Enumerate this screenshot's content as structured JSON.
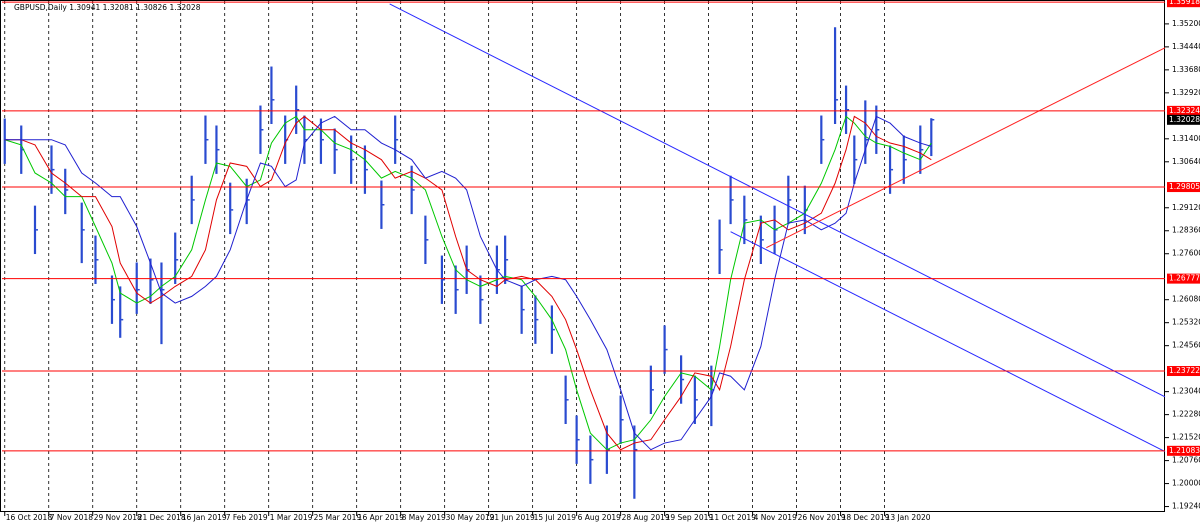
{
  "chart_data": {
    "type": "ohlc",
    "title": "GBPUSD,Daily  1.30941 1.32081 1.30826 1.32028",
    "x": [
      0,
      6,
      11,
      17,
      22,
      28,
      33,
      39,
      42,
      48,
      53,
      57,
      62,
      68,
      73,
      77,
      82,
      88,
      93,
      97,
      102,
      106,
      109,
      115,
      120,
      126,
      131,
      137,
      142,
      148,
      153,
      159,
      164,
      168,
      173,
      179,
      182,
      188,
      193,
      199,
      204,
      208,
      213,
      219,
      224,
      229,
      235,
      240,
      246,
      251,
      257,
      260,
      264,
      269,
      275,
      280,
      285,
      291,
      297,
      302,
      306,
      309,
      313,
      317,
      322,
      327,
      333,
      337
    ],
    "close": [
      1.3137,
      1.3104,
      1.2839,
      1.3038,
      1.2971,
      1.2839,
      1.274,
      1.2608,
      1.2542,
      1.2641,
      1.2674,
      1.2641,
      1.274,
      1.2938,
      1.3137,
      1.3104,
      1.2905,
      1.2938,
      1.317,
      1.3269,
      1.3137,
      1.3236,
      1.3137,
      1.3137,
      1.3104,
      1.3071,
      1.3038,
      1.2922,
      1.3137,
      1.2971,
      1.2806,
      1.2674,
      1.2641,
      1.2707,
      1.2608,
      1.2707,
      1.274,
      1.2575,
      1.2542,
      1.2509,
      1.2277,
      1.2145,
      1.2079,
      1.2112,
      1.2211,
      1.2112,
      1.231,
      1.2443,
      1.2344,
      1.2277,
      1.231,
      1.2773,
      1.2938,
      1.2872,
      1.2806,
      1.2839,
      1.2938,
      1.2905,
      1.3137,
      1.3269,
      1.3236,
      1.3071,
      1.3137,
      1.317,
      1.3038,
      1.3071,
      1.3104,
      1.3203
    ],
    "high": [
      1.3207,
      1.3184,
      1.2919,
      1.3118,
      1.3041,
      1.2929,
      1.282,
      1.2688,
      1.2652,
      1.2731,
      1.2744,
      1.2731,
      1.283,
      1.3018,
      1.3217,
      1.3184,
      1.2995,
      1.3008,
      1.325,
      1.3379,
      1.3217,
      1.3316,
      1.3217,
      1.3207,
      1.3174,
      1.3151,
      1.3118,
      1.3002,
      1.3217,
      1.3051,
      1.2886,
      1.2754,
      1.2721,
      1.2787,
      1.2688,
      1.2787,
      1.282,
      1.2655,
      1.2622,
      1.2589,
      1.2357,
      1.2225,
      1.2159,
      1.2192,
      1.2291,
      1.2192,
      1.239,
      1.2523,
      1.2424,
      1.2357,
      1.239,
      1.2873,
      1.3018,
      1.2952,
      1.2886,
      1.2919,
      1.3018,
      1.2985,
      1.3217,
      1.3509,
      1.3316,
      1.3151,
      1.3267,
      1.325,
      1.3118,
      1.3151,
      1.3184,
      1.3208
    ],
    "low": [
      1.3057,
      1.3024,
      1.2759,
      1.2958,
      1.2891,
      1.2729,
      1.266,
      1.2528,
      1.2482,
      1.2561,
      1.2594,
      1.2461,
      1.266,
      1.2858,
      1.3057,
      1.3024,
      1.2825,
      1.2858,
      1.309,
      1.3189,
      1.3057,
      1.3156,
      1.3057,
      1.3057,
      1.3024,
      1.2991,
      1.2958,
      1.2842,
      1.3057,
      1.2891,
      1.2726,
      1.2594,
      1.2561,
      1.2627,
      1.2528,
      1.2627,
      1.266,
      1.2495,
      1.2462,
      1.2429,
      1.2197,
      1.2065,
      1.1999,
      1.2032,
      1.2131,
      1.195,
      1.223,
      1.2363,
      1.2264,
      1.2197,
      1.219,
      1.2693,
      1.2858,
      1.2792,
      1.2726,
      1.2759,
      1.2858,
      1.2825,
      1.3057,
      1.3189,
      1.3156,
      1.2991,
      1.3057,
      1.309,
      1.2958,
      1.2991,
      1.3024,
      1.3083
    ],
    "moving_averages": [
      {
        "color": "#00c800",
        "values": [
          1.3137,
          1.312,
          1.3027,
          1.2994,
          1.2949,
          1.2949,
          1.285,
          1.2729,
          1.263,
          1.2597,
          1.2619,
          1.2652,
          1.2685,
          1.2773,
          1.2938,
          1.306,
          1.3049,
          1.2982,
          1.3004,
          1.3126,
          1.3192,
          1.3214,
          1.317,
          1.317,
          1.3126,
          1.3104,
          1.3071,
          1.301,
          1.3032,
          1.301,
          1.2971,
          1.2817,
          1.2707,
          1.2674,
          1.2652,
          1.2674,
          1.2685,
          1.2674,
          1.2619,
          1.2542,
          1.2443,
          1.231,
          1.2167,
          1.2112,
          1.2134,
          1.2145,
          1.2211,
          1.2288,
          1.2366,
          1.2355,
          1.231,
          1.2453,
          1.2674,
          1.2861,
          1.2872,
          1.2839,
          1.2861,
          1.2894,
          1.2993,
          1.3104,
          1.3214,
          1.3192,
          1.3148,
          1.3126,
          1.3115,
          1.3093,
          1.3071,
          1.3126
        ]
      },
      {
        "color": "#e00000",
        "values": [
          1.3137,
          1.3137,
          1.312,
          1.3027,
          1.2994,
          1.2949,
          1.2949,
          1.285,
          1.2729,
          1.263,
          1.2597,
          1.2619,
          1.2652,
          1.2685,
          1.2773,
          1.2938,
          1.306,
          1.3049,
          1.2982,
          1.3004,
          1.3126,
          1.3192,
          1.3214,
          1.317,
          1.317,
          1.3126,
          1.3104,
          1.3071,
          1.301,
          1.3032,
          1.301,
          1.2971,
          1.2817,
          1.2707,
          1.2674,
          1.2652,
          1.2674,
          1.2685,
          1.2674,
          1.2619,
          1.2542,
          1.2443,
          1.231,
          1.2167,
          1.2112,
          1.2134,
          1.2145,
          1.2211,
          1.2288,
          1.2366,
          1.2355,
          1.231,
          1.2453,
          1.2674,
          1.2861,
          1.2872,
          1.2839,
          1.2861,
          1.2894,
          1.2993,
          1.3104,
          1.3214,
          1.3192,
          1.3148,
          1.3126,
          1.3115,
          1.3093,
          1.3071
        ]
      },
      {
        "color": "#2020d0",
        "values": [
          1.3137,
          1.3137,
          1.3137,
          1.3137,
          1.312,
          1.3027,
          1.2994,
          1.2949,
          1.2949,
          1.285,
          1.2729,
          1.263,
          1.2597,
          1.2619,
          1.2652,
          1.2685,
          1.2773,
          1.2938,
          1.306,
          1.3049,
          1.2982,
          1.3004,
          1.3126,
          1.3192,
          1.3214,
          1.317,
          1.317,
          1.3126,
          1.3104,
          1.3071,
          1.301,
          1.3032,
          1.301,
          1.2971,
          1.2817,
          1.2707,
          1.2674,
          1.2652,
          1.2674,
          1.2685,
          1.2674,
          1.2619,
          1.2542,
          1.2443,
          1.231,
          1.2167,
          1.2112,
          1.2134,
          1.2145,
          1.2211,
          1.2288,
          1.2366,
          1.2355,
          1.231,
          1.2453,
          1.2674,
          1.2861,
          1.2872,
          1.2839,
          1.2861,
          1.2894,
          1.2993,
          1.3104,
          1.3214,
          1.3192,
          1.3148,
          1.3126,
          1.3115
        ]
      }
    ],
    "color": "#2a4bd0",
    "trendlines": [
      {
        "color": "#2828ff",
        "x": [
          140,
          422
        ],
        "y": [
          1.3586,
          1.2287
        ]
      },
      {
        "color": "#2828ff",
        "x": [
          264,
          422
        ],
        "y": [
          1.2833,
          1.2106
        ]
      },
      {
        "color": "#ff2020",
        "x": [
          277,
          422
        ],
        "y": [
          1.278,
          1.3441
        ]
      }
    ],
    "levels": [
      1.35918,
      1.32324,
      1.29805,
      1.26777,
      1.23722,
      1.21083
    ],
    "level_color": "#ff0000",
    "last_price": 1.32028,
    "xlim": [
      -1,
      422
    ],
    "ylim": [
      1.1906,
      1.3599
    ],
    "xticks": [
      {
        "value": 0,
        "label": "16 Oct 2018"
      },
      {
        "value": 16,
        "label": "7 Nov 2018"
      },
      {
        "value": 32,
        "label": "29 Nov 2018"
      },
      {
        "value": 48,
        "label": "21 Dec 2018"
      },
      {
        "value": 64,
        "label": "16 Jan 2019"
      },
      {
        "value": 80,
        "label": "7 Feb 2019"
      },
      {
        "value": 96,
        "label": "1 Mar 2019"
      },
      {
        "value": 112,
        "label": "25 Mar 2019"
      },
      {
        "value": 128,
        "label": "16 Apr 2019"
      },
      {
        "value": 144,
        "label": "8 May 2019"
      },
      {
        "value": 160,
        "label": "30 May 2019"
      },
      {
        "value": 176,
        "label": "21 Jun 2019"
      },
      {
        "value": 192,
        "label": "15 Jul 2019"
      },
      {
        "value": 208,
        "label": "6 Aug 2019"
      },
      {
        "value": 224,
        "label": "28 Aug 2019"
      },
      {
        "value": 240,
        "label": "19 Sep 2019"
      },
      {
        "value": 256,
        "label": "11 Oct 2019"
      },
      {
        "value": 272,
        "label": "4 Nov 2019"
      },
      {
        "value": 288,
        "label": "26 Nov 2019"
      },
      {
        "value": 304,
        "label": "18 Dec 2019"
      },
      {
        "value": 320,
        "label": "13 Jan 2020"
      }
    ],
    "yticks": [
      {
        "value": 1.352,
        "label": "1.35200"
      },
      {
        "value": 1.3444,
        "label": "1.34440"
      },
      {
        "value": 1.3368,
        "label": "1.33680"
      },
      {
        "value": 1.3292,
        "label": "1.32920"
      },
      {
        "value": 1.314,
        "label": "1.31400"
      },
      {
        "value": 1.3064,
        "label": "1.30640"
      },
      {
        "value": 1.2912,
        "label": "1.29120"
      },
      {
        "value": 1.2836,
        "label": "1.28360"
      },
      {
        "value": 1.276,
        "label": "1.27600"
      },
      {
        "value": 1.2608,
        "label": "1.26080"
      },
      {
        "value": 1.2532,
        "label": "1.25320"
      },
      {
        "value": 1.2456,
        "label": "1.24560"
      },
      {
        "value": 1.2304,
        "label": "1.23040"
      },
      {
        "value": 1.2228,
        "label": "1.22280"
      },
      {
        "value": 1.2152,
        "label": "1.21520"
      },
      {
        "value": 1.2076,
        "label": "1.20760"
      },
      {
        "value": 1.2,
        "label": "1.20000"
      },
      {
        "value": 1.1924,
        "label": "1.19240"
      }
    ],
    "grid": true
  }
}
